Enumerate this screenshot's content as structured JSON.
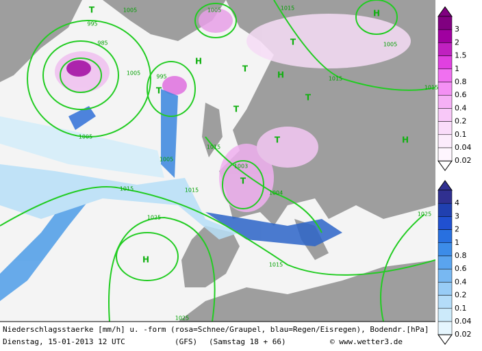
{
  "map_labels": [
    "995",
    "1005",
    "985",
    "1005",
    "995",
    "1005",
    "1015",
    "1005",
    "1015",
    "1015",
    "1005",
    "1005",
    "1015",
    "1015",
    "1003",
    "1004",
    "1015",
    "1025",
    "1025",
    "1015",
    "1025"
  ],
  "pressure_centers": [
    "H",
    "H",
    "H",
    "H",
    "H",
    "T",
    "T",
    "T",
    "T",
    "T",
    "T",
    "T",
    "T"
  ],
  "legend_snow": {
    "ticks": [
      "3",
      "2",
      "1.5",
      "1",
      "0.8",
      "0.6",
      "0.4",
      "0.2",
      "0.1",
      "0.04",
      "0.02"
    ]
  },
  "legend_rain": {
    "ticks": [
      "4",
      "3",
      "2",
      "1",
      "0.8",
      "0.6",
      "0.4",
      "0.2",
      "0.1",
      "0.04",
      "0.02"
    ]
  },
  "footer": {
    "description": "Niederschlagsstaerke [mm/h] u. -form (rosa=Schnee/Graupel, blau=Regen/Eisregen), Bodendr.[hPa]",
    "date": "Dienstag, 15-01-2013  12 UTC",
    "model": "(GFS)",
    "run": "(Samstag 18 + 66)",
    "credit": "© www.wetter3.de"
  }
}
